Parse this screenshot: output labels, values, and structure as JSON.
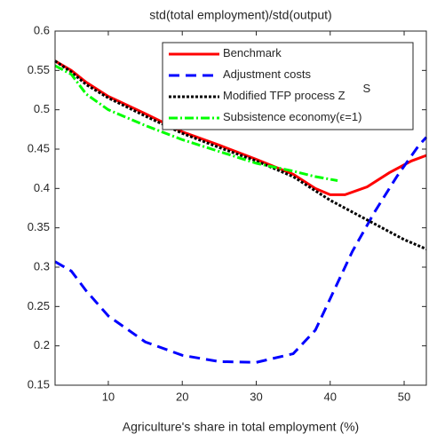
{
  "chart_data": {
    "type": "line",
    "title": "std(total employment)/std(output)",
    "xlabel": "Agriculture's share in total employment (%)",
    "xlim": [
      2.8,
      53
    ],
    "ylim": [
      0.15,
      0.6
    ],
    "xticks": [
      10,
      20,
      30,
      40,
      50
    ],
    "yticks": [
      0.15,
      0.2,
      0.25,
      0.3,
      0.35,
      0.4,
      0.45,
      0.5,
      0.55,
      0.6
    ],
    "legend": "upper right",
    "series": [
      {
        "name": "Benchmark",
        "color": "#ff0000",
        "dash": "solid",
        "x": [
          2.8,
          5,
          7,
          10,
          15,
          20,
          25,
          30,
          35,
          38,
          40,
          42,
          45,
          48,
          51,
          53
        ],
        "values": [
          0.562,
          0.55,
          0.535,
          0.517,
          0.495,
          0.472,
          0.455,
          0.437,
          0.418,
          0.4,
          0.392,
          0.392,
          0.402,
          0.42,
          0.435,
          0.442
        ]
      },
      {
        "name": "Adjustment costs",
        "color": "#0000ff",
        "dash": "dashed",
        "x": [
          2.8,
          5,
          7,
          10,
          15,
          20,
          25,
          30,
          35,
          38,
          40,
          43,
          46,
          49,
          52,
          53
        ],
        "values": [
          0.307,
          0.295,
          0.27,
          0.238,
          0.205,
          0.188,
          0.18,
          0.179,
          0.19,
          0.22,
          0.26,
          0.32,
          0.37,
          0.415,
          0.455,
          0.465
        ]
      },
      {
        "name": "Modified TFP process Z",
        "superscript": "S",
        "color": "#000000",
        "dash": "dotted",
        "x": [
          2.8,
          5,
          7,
          10,
          15,
          20,
          25,
          30,
          35,
          40,
          45,
          50,
          53
        ],
        "values": [
          0.562,
          0.548,
          0.532,
          0.515,
          0.492,
          0.47,
          0.452,
          0.435,
          0.415,
          0.385,
          0.36,
          0.335,
          0.323
        ]
      },
      {
        "name": "Subsistence economy(ϵ=1)",
        "color": "#00ff00",
        "dash": "dashdot",
        "x": [
          2.8,
          5,
          7,
          10,
          15,
          20,
          25,
          30,
          35,
          38,
          41
        ],
        "values": [
          0.556,
          0.545,
          0.52,
          0.5,
          0.48,
          0.462,
          0.447,
          0.432,
          0.422,
          0.415,
          0.41
        ]
      }
    ]
  }
}
